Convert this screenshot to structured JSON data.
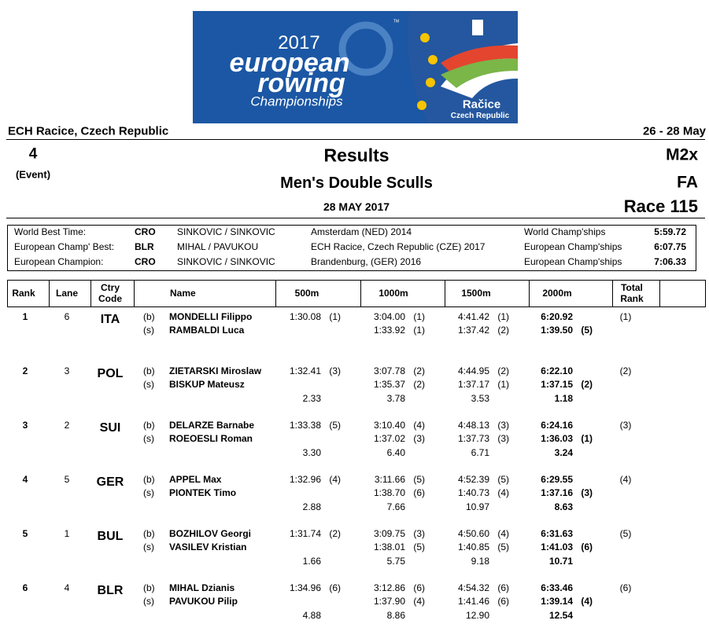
{
  "logo": {
    "year": "2017",
    "line1": "european",
    "line2": "rowing",
    "line3": "Championships",
    "tm": "TM",
    "town": "Račice",
    "country": "Czech Republic"
  },
  "header": {
    "venue": "ECH Racice, Czech Republic",
    "dates": "26 - 28 May",
    "event_number": "4",
    "event_label": "(Event)",
    "title": "Results",
    "boat_class": "M2x",
    "event_name": "Men's Double Sculls",
    "final": "FA",
    "date": "28 MAY 2017",
    "race": "Race 115"
  },
  "records": [
    [
      "World Best Time:",
      "CRO",
      "SINKOVIC / SINKOVIC",
      "Amsterdam (NED)  2014",
      "World Champ'ships",
      "5:59.72"
    ],
    [
      "European Champ' Best:",
      "BLR",
      "MIHAL / PAVUKOU",
      "ECH Racice, Czech Republic (CZE)  2017",
      "European Champ'ships",
      "6:07.75"
    ],
    [
      "European Champion:",
      "CRO",
      "SINKOVIC / SINKOVIC",
      "Brandenburg, (GER)  2016",
      "European Champ'ships",
      "7:06.33"
    ]
  ],
  "table": {
    "columns": [
      "Rank",
      "Lane",
      "Ctry Code",
      "Name",
      "500m",
      "1000m",
      "1500m",
      "2000m",
      "Total Rank"
    ],
    "results": [
      {
        "rank": 1,
        "lane": 6,
        "country": "ITA",
        "rowers": [
          [
            "(b)",
            "MONDELLI Filippo"
          ],
          [
            "(s)",
            "RAMBALDI Luca"
          ]
        ],
        "times": [
          [
            "1:30.08",
            "(1)"
          ],
          [
            "3:04.00",
            "(1)"
          ],
          [
            "4:41.42",
            "(1)"
          ],
          [
            "6:20.92",
            ""
          ]
        ],
        "splits": [
          [
            "1:33.92",
            "(1)"
          ],
          [
            "1:37.42",
            "(2)"
          ],
          [
            "1:39.50",
            "(5)"
          ]
        ],
        "behind": null,
        "total_rank": "(1)"
      },
      {
        "rank": 2,
        "lane": 3,
        "country": "POL",
        "rowers": [
          [
            "(b)",
            "ZIETARSKI Miroslaw"
          ],
          [
            "(s)",
            "BISKUP Mateusz"
          ]
        ],
        "times": [
          [
            "1:32.41",
            "(3)"
          ],
          [
            "3:07.78",
            "(2)"
          ],
          [
            "4:44.95",
            "(2)"
          ],
          [
            "6:22.10",
            ""
          ]
        ],
        "splits": [
          [
            "1:35.37",
            "(2)"
          ],
          [
            "1:37.17",
            "(1)"
          ],
          [
            "1:37.15",
            "(2)"
          ]
        ],
        "behind": [
          "2.33",
          "3.78",
          "3.53",
          "1.18"
        ],
        "total_rank": "(2)"
      },
      {
        "rank": 3,
        "lane": 2,
        "country": "SUI",
        "rowers": [
          [
            "(b)",
            "DELARZE Barnabe"
          ],
          [
            "(s)",
            "ROEOESLI Roman"
          ]
        ],
        "times": [
          [
            "1:33.38",
            "(5)"
          ],
          [
            "3:10.40",
            "(4)"
          ],
          [
            "4:48.13",
            "(3)"
          ],
          [
            "6:24.16",
            ""
          ]
        ],
        "splits": [
          [
            "1:37.02",
            "(3)"
          ],
          [
            "1:37.73",
            "(3)"
          ],
          [
            "1:36.03",
            "(1)"
          ]
        ],
        "behind": [
          "3.30",
          "6.40",
          "6.71",
          "3.24"
        ],
        "total_rank": "(3)"
      },
      {
        "rank": 4,
        "lane": 5,
        "country": "GER",
        "rowers": [
          [
            "(b)",
            "APPEL Max"
          ],
          [
            "(s)",
            "PIONTEK Timo"
          ]
        ],
        "times": [
          [
            "1:32.96",
            "(4)"
          ],
          [
            "3:11.66",
            "(5)"
          ],
          [
            "4:52.39",
            "(5)"
          ],
          [
            "6:29.55",
            ""
          ]
        ],
        "splits": [
          [
            "1:38.70",
            "(6)"
          ],
          [
            "1:40.73",
            "(4)"
          ],
          [
            "1:37.16",
            "(3)"
          ]
        ],
        "behind": [
          "2.88",
          "7.66",
          "10.97",
          "8.63"
        ],
        "total_rank": "(4)"
      },
      {
        "rank": 5,
        "lane": 1,
        "country": "BUL",
        "rowers": [
          [
            "(b)",
            "BOZHILOV Georgi"
          ],
          [
            "(s)",
            "VASILEV Kristian"
          ]
        ],
        "times": [
          [
            "1:31.74",
            "(2)"
          ],
          [
            "3:09.75",
            "(3)"
          ],
          [
            "4:50.60",
            "(4)"
          ],
          [
            "6:31.63",
            ""
          ]
        ],
        "splits": [
          [
            "1:38.01",
            "(5)"
          ],
          [
            "1:40.85",
            "(5)"
          ],
          [
            "1:41.03",
            "(6)"
          ]
        ],
        "behind": [
          "1.66",
          "5.75",
          "9.18",
          "10.71"
        ],
        "total_rank": "(5)"
      },
      {
        "rank": 6,
        "lane": 4,
        "country": "BLR",
        "rowers": [
          [
            "(b)",
            "MIHAL Dzianis"
          ],
          [
            "(s)",
            "PAVUKOU Pilip"
          ]
        ],
        "times": [
          [
            "1:34.96",
            "(6)"
          ],
          [
            "3:12.86",
            "(6)"
          ],
          [
            "4:54.32",
            "(6)"
          ],
          [
            "6:33.46",
            ""
          ]
        ],
        "splits": [
          [
            "1:37.90",
            "(4)"
          ],
          [
            "1:41.46",
            "(6)"
          ],
          [
            "1:39.14",
            "(4)"
          ]
        ],
        "behind": [
          "4.88",
          "8.86",
          "12.90",
          "12.54"
        ],
        "total_rank": "(6)"
      }
    ]
  }
}
